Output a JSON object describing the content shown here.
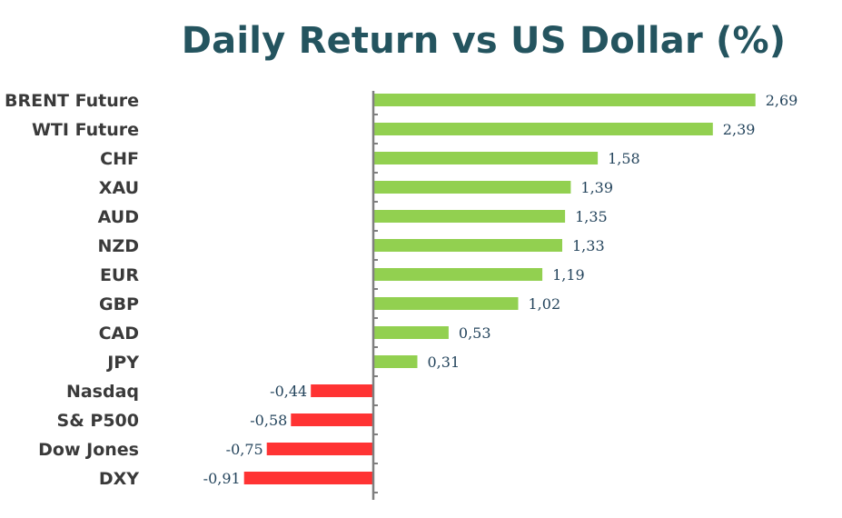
{
  "chart_data": {
    "type": "bar",
    "orientation": "horizontal",
    "title": "Daily Return vs US Dollar (%)",
    "categories": [
      "BRENT Future",
      "WTI Future",
      "CHF",
      "XAU",
      "AUD",
      "NZD",
      "EUR",
      "GBP",
      "CAD",
      "JPY",
      "Nasdaq",
      "S& P500",
      "Dow Jones",
      "DXY"
    ],
    "values": [
      2.69,
      2.39,
      1.58,
      1.39,
      1.35,
      1.33,
      1.19,
      1.02,
      0.53,
      0.31,
      -0.44,
      -0.58,
      -0.75,
      -0.91
    ],
    "value_labels": [
      "2,69",
      "2,39",
      "1,58",
      "1,39",
      "1,35",
      "1,33",
      "1,19",
      "1,02",
      "0,53",
      "0,31",
      "-0,44",
      "-0,58",
      "-0,75",
      "-0,91"
    ],
    "xlim": [
      -0.91,
      2.69
    ],
    "grid": false,
    "legend": "none",
    "colors": {
      "positive": "#92d050",
      "negative": "#ff3333",
      "title": "#24545f",
      "axis": "#7f7f7f",
      "category_text": "#3a3a3a",
      "value_text": "#24445c"
    }
  }
}
